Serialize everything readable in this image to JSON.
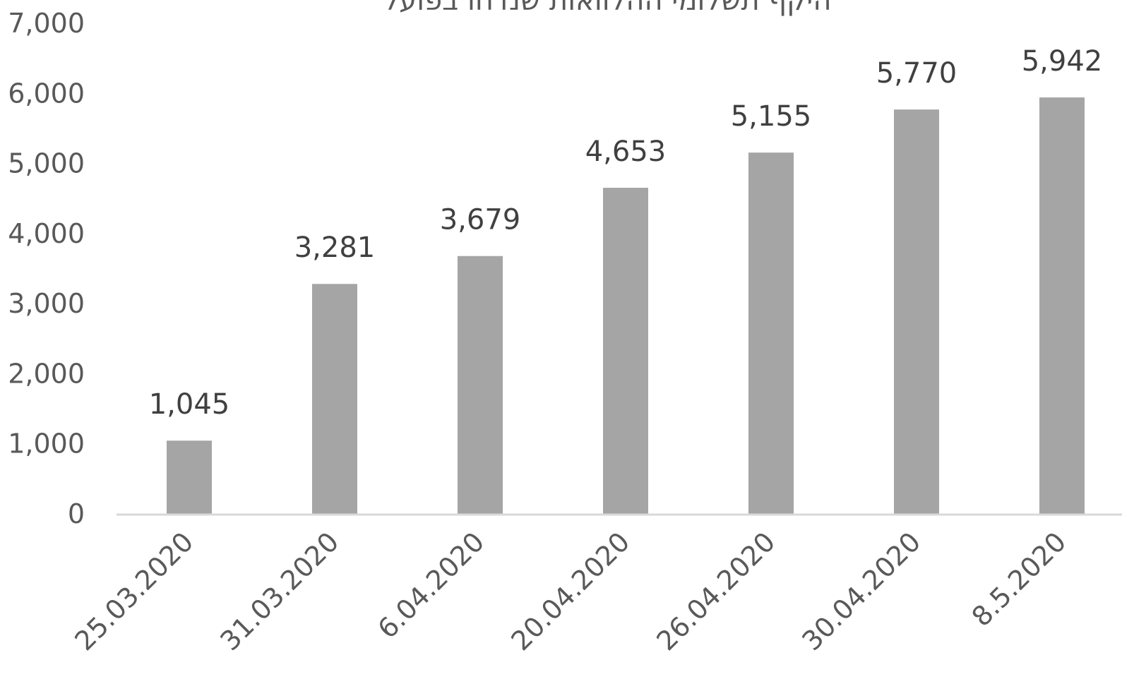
{
  "chart_data": {
    "type": "bar",
    "title": "היקף תשלומי ההלוואות שנדחו בפועל",
    "categories": [
      "25.03.2020",
      "31.03.2020",
      "6.04.2020",
      "20.04.2020",
      "26.04.2020",
      "30.04.2020",
      "8.5.2020"
    ],
    "values": [
      1045,
      3281,
      3679,
      4653,
      5155,
      5770,
      5942
    ],
    "value_labels": [
      "1,045",
      "3,281",
      "3,679",
      "4,653",
      "5,155",
      "5,770",
      "5,942"
    ],
    "yticks": [
      "0",
      "1,000",
      "2,000",
      "3,000",
      "4,000",
      "5,000",
      "6,000",
      "7,000"
    ],
    "ylim": [
      0,
      7000
    ],
    "grid": false,
    "legend": "none",
    "colors": {
      "bar": "#a5a5a5",
      "axis": "#d9d9d9",
      "tick_text": "#595959",
      "label_text": "#404040"
    }
  }
}
